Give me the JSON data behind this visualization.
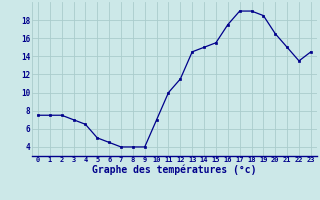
{
  "x": [
    0,
    1,
    2,
    3,
    4,
    5,
    6,
    7,
    8,
    9,
    10,
    11,
    12,
    13,
    14,
    15,
    16,
    17,
    18,
    19,
    20,
    21,
    22,
    23
  ],
  "y": [
    7.5,
    7.5,
    7.5,
    7.0,
    6.5,
    5.0,
    4.5,
    4.0,
    4.0,
    4.0,
    7.0,
    10.0,
    11.5,
    14.5,
    15.0,
    15.5,
    17.5,
    19.0,
    19.0,
    18.5,
    16.5,
    15.0,
    13.5,
    14.5
  ],
  "xlabel": "Graphe des températures (°c)",
  "xlim_min": -0.5,
  "xlim_max": 23.5,
  "ylim_min": 3,
  "ylim_max": 20,
  "yticks": [
    4,
    6,
    8,
    10,
    12,
    14,
    16,
    18
  ],
  "xticks": [
    0,
    1,
    2,
    3,
    4,
    5,
    6,
    7,
    8,
    9,
    10,
    11,
    12,
    13,
    14,
    15,
    16,
    17,
    18,
    19,
    20,
    21,
    22,
    23
  ],
  "line_color": "#00008B",
  "marker_color": "#00008B",
  "bg_color": "#cce8e8",
  "grid_color": "#aacccc",
  "xlabel_color": "#00008B",
  "tick_color": "#00008B",
  "tick_fontsize": 5.0,
  "xlabel_fontsize": 7.0,
  "ytick_fontsize": 5.5
}
